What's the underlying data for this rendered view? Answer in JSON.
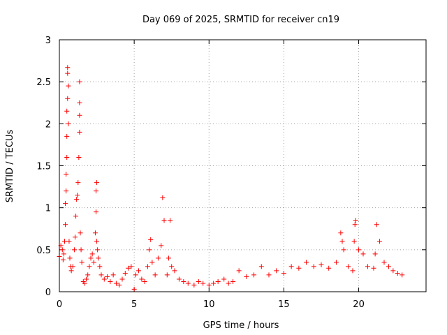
{
  "chart_data": {
    "type": "scatter",
    "title": "Day 069 of 2025, SRMTID for receiver cn19",
    "xlabel": "GPS time / hours",
    "ylabel": "SRMTID / TECUs",
    "xlim": [
      0,
      24.5
    ],
    "ylim": [
      0,
      3
    ],
    "x_ticks": [
      0,
      5,
      10,
      15,
      20
    ],
    "x_tick_labels": [
      "0",
      "5",
      "10",
      "15",
      "20"
    ],
    "y_ticks": [
      0,
      0.5,
      1,
      1.5,
      2,
      2.5,
      3
    ],
    "y_tick_labels": [
      "0",
      "0.5",
      "1",
      "1.5",
      "2",
      "2.5",
      "3"
    ],
    "grid": true,
    "marker": "+",
    "marker_color": "#ff0000",
    "series": [
      {
        "name": "SRMTID cn19",
        "x": [
          0.0,
          0.1,
          0.2,
          0.25,
          0.3,
          0.35,
          0.4,
          0.4,
          0.45,
          0.45,
          0.5,
          0.5,
          0.5,
          0.55,
          0.55,
          0.55,
          0.6,
          0.6,
          0.65,
          0.7,
          0.75,
          0.8,
          0.9,
          1.0,
          1.05,
          1.1,
          1.15,
          1.2,
          1.25,
          1.3,
          1.35,
          1.35,
          1.35,
          1.35,
          1.4,
          1.45,
          1.5,
          1.6,
          1.7,
          1.8,
          1.9,
          2.0,
          2.1,
          2.2,
          2.3,
          2.4,
          2.45,
          2.45,
          2.5,
          2.5,
          2.55,
          2.6,
          2.7,
          2.8,
          3.0,
          3.2,
          3.4,
          3.6,
          3.8,
          4.0,
          4.2,
          4.4,
          4.6,
          4.8,
          5.0,
          5.1,
          5.3,
          5.5,
          5.7,
          5.9,
          6.0,
          6.1,
          6.2,
          6.4,
          6.6,
          6.8,
          6.9,
          7.0,
          7.2,
          7.3,
          7.4,
          7.5,
          7.7,
          8.0,
          8.3,
          8.6,
          9.0,
          9.3,
          9.6,
          10.0,
          10.3,
          10.6,
          11.0,
          11.3,
          11.6,
          12.0,
          12.5,
          13.0,
          13.5,
          14.0,
          14.5,
          15.0,
          15.5,
          16.0,
          16.5,
          17.0,
          17.5,
          18.0,
          18.5,
          18.8,
          18.9,
          19.0,
          19.3,
          19.6,
          19.7,
          19.75,
          19.8,
          20.0,
          20.3,
          20.6,
          21.0,
          21.1,
          21.2,
          21.4,
          21.7,
          22.0,
          22.3,
          22.6,
          22.9
        ],
        "y": [
          0.42,
          0.55,
          0.5,
          0.38,
          0.45,
          0.6,
          0.8,
          1.05,
          1.4,
          1.2,
          1.6,
          1.85,
          2.15,
          2.3,
          2.6,
          2.67,
          2.45,
          2.0,
          0.6,
          0.4,
          0.3,
          0.25,
          0.3,
          0.5,
          0.65,
          0.9,
          1.1,
          1.15,
          1.3,
          1.6,
          1.9,
          2.1,
          2.25,
          2.5,
          0.7,
          0.5,
          0.35,
          0.12,
          0.1,
          0.15,
          0.2,
          0.3,
          0.4,
          0.45,
          0.35,
          0.7,
          0.95,
          1.2,
          1.3,
          0.6,
          0.5,
          0.4,
          0.3,
          0.2,
          0.15,
          0.18,
          0.12,
          0.2,
          0.1,
          0.08,
          0.15,
          0.22,
          0.28,
          0.3,
          0.03,
          0.2,
          0.25,
          0.15,
          0.12,
          0.3,
          0.5,
          0.62,
          0.35,
          0.2,
          0.4,
          0.55,
          1.12,
          0.85,
          0.2,
          0.4,
          0.85,
          0.3,
          0.25,
          0.15,
          0.12,
          0.1,
          0.08,
          0.12,
          0.1,
          0.08,
          0.1,
          0.12,
          0.15,
          0.1,
          0.12,
          0.25,
          0.18,
          0.2,
          0.3,
          0.2,
          0.25,
          0.22,
          0.3,
          0.28,
          0.35,
          0.3,
          0.32,
          0.28,
          0.35,
          0.7,
          0.6,
          0.5,
          0.3,
          0.25,
          0.6,
          0.8,
          0.85,
          0.5,
          0.45,
          0.3,
          0.28,
          0.45,
          0.8,
          0.6,
          0.35,
          0.3,
          0.25,
          0.22,
          0.2
        ]
      }
    ]
  }
}
